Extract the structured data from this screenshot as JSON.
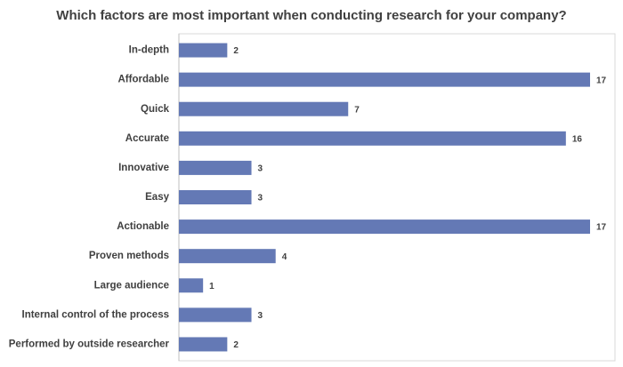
{
  "chart_data": {
    "type": "bar",
    "orientation": "horizontal",
    "title": "Which factors are most important when conducting research for your company?",
    "categories": [
      "In-depth",
      "Affordable",
      "Quick",
      "Accurate",
      "Innovative",
      "Easy",
      "Actionable",
      "Proven methods",
      "Large audience",
      "Internal control of the process",
      "Performed by outside researcher"
    ],
    "values": [
      2,
      17,
      7,
      16,
      3,
      3,
      17,
      4,
      1,
      3,
      2
    ],
    "color": "#6479b5"
  }
}
